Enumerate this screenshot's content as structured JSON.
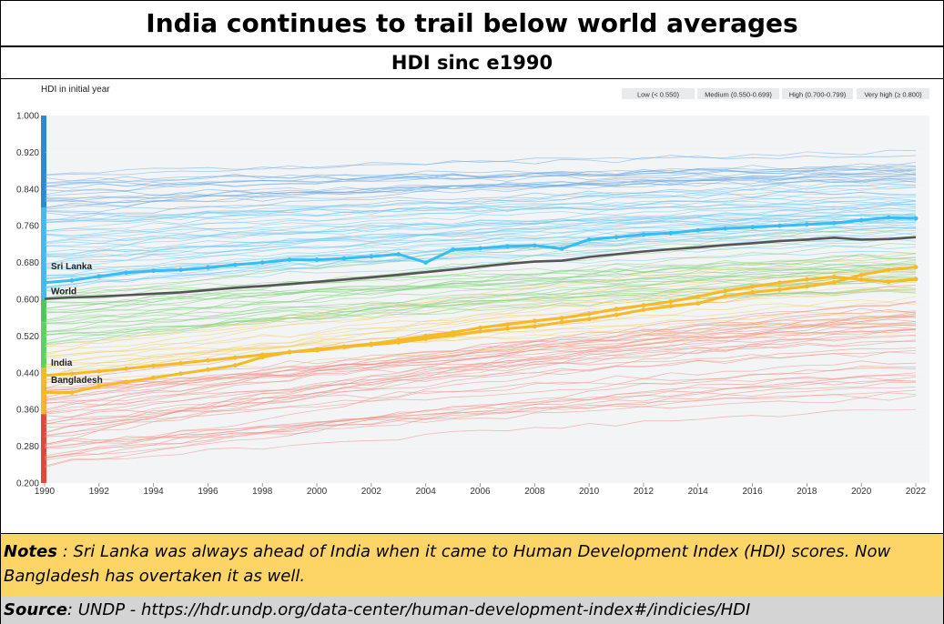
{
  "header": {
    "title": "India continues to trail below world averages",
    "subtitle": "HDI sinc e1990"
  },
  "notes": {
    "label": "Notes",
    "text": " : Sri Lanka was always ahead of India when it came to Human Development Index (HDI) scores.  Now Bangladesh has overtaken it as well."
  },
  "source": {
    "label": "Source",
    "text": " : UNDP - https://hdr.undp.org/data-center/human-development-index#/indicies/HDI"
  },
  "chart_data": {
    "type": "line",
    "ylabel": "HDI in initial year",
    "xlabel": "",
    "xlim": [
      1990,
      2022
    ],
    "ylim": [
      0.2,
      1.0
    ],
    "yticks": [
      "1.000",
      "0.920",
      "0.840",
      "0.760",
      "0.680",
      "0.600",
      "0.520",
      "0.440",
      "0.360",
      "0.280",
      "0.200"
    ],
    "xticks": [
      "1990",
      "1992",
      "1994",
      "1996",
      "1998",
      "2000",
      "2002",
      "2004",
      "2006",
      "2008",
      "2010",
      "2012",
      "2014",
      "2016",
      "2018",
      "2020",
      "2022"
    ],
    "legend_position": "top-right",
    "legend": [
      {
        "label": "Low (< 0.550)",
        "color": "#e0473d"
      },
      {
        "label": "Medium (0.550-0.699)",
        "color": "#f4b731"
      },
      {
        "label": "High (0.700-0.799)",
        "color": "#4fc55a"
      },
      {
        "label": "Very high (≥ 0.800)",
        "color": "#2f88d0"
      }
    ],
    "category_colors": {
      "low": "#e0473d",
      "medium": "#f4b731",
      "high": "#4fc55a",
      "very_high": "#2f88d0",
      "very_high_light": "#4fb4ee"
    },
    "x": [
      1990,
      1991,
      1992,
      1993,
      1994,
      1995,
      1996,
      1997,
      1998,
      1999,
      2000,
      2001,
      2002,
      2003,
      2004,
      2005,
      2006,
      2007,
      2008,
      2009,
      2010,
      2011,
      2012,
      2013,
      2014,
      2015,
      2016,
      2017,
      2018,
      2019,
      2020,
      2021,
      2022
    ],
    "series": [
      {
        "name": "Sri Lanka",
        "color": "#38bdf0",
        "values": [
          0.636,
          0.641,
          0.65,
          0.658,
          0.662,
          0.664,
          0.669,
          0.675,
          0.68,
          0.686,
          0.686,
          0.689,
          0.693,
          0.698,
          0.68,
          0.708,
          0.711,
          0.715,
          0.717,
          0.71,
          0.73,
          0.735,
          0.741,
          0.744,
          0.75,
          0.754,
          0.757,
          0.76,
          0.763,
          0.766,
          0.772,
          0.778,
          0.776
        ]
      },
      {
        "name": "World",
        "color": "#555555",
        "values": [
          0.601,
          0.604,
          0.606,
          0.609,
          0.612,
          0.615,
          0.62,
          0.625,
          0.629,
          0.633,
          0.638,
          0.643,
          0.648,
          0.653,
          0.659,
          0.665,
          0.671,
          0.677,
          0.682,
          0.684,
          0.692,
          0.698,
          0.704,
          0.709,
          0.713,
          0.718,
          0.722,
          0.727,
          0.73,
          0.734,
          0.73,
          0.731,
          0.735
        ]
      },
      {
        "name": "India",
        "color": "#f6b928",
        "values": [
          0.434,
          0.438,
          0.443,
          0.449,
          0.455,
          0.461,
          0.467,
          0.473,
          0.479,
          0.485,
          0.491,
          0.497,
          0.503,
          0.511,
          0.52,
          0.528,
          0.538,
          0.545,
          0.553,
          0.559,
          0.568,
          0.579,
          0.587,
          0.595,
          0.606,
          0.618,
          0.628,
          0.636,
          0.643,
          0.649,
          0.643,
          0.638,
          0.644
        ]
      },
      {
        "name": "Bangladesh",
        "color": "#f6b928",
        "values": [
          0.397,
          0.397,
          0.411,
          0.42,
          0.429,
          0.438,
          0.447,
          0.456,
          0.474,
          0.485,
          0.489,
          0.496,
          0.501,
          0.506,
          0.514,
          0.522,
          0.53,
          0.536,
          0.541,
          0.55,
          0.557,
          0.566,
          0.577,
          0.585,
          0.591,
          0.607,
          0.615,
          0.621,
          0.628,
          0.637,
          0.653,
          0.664,
          0.67
        ]
      }
    ]
  }
}
